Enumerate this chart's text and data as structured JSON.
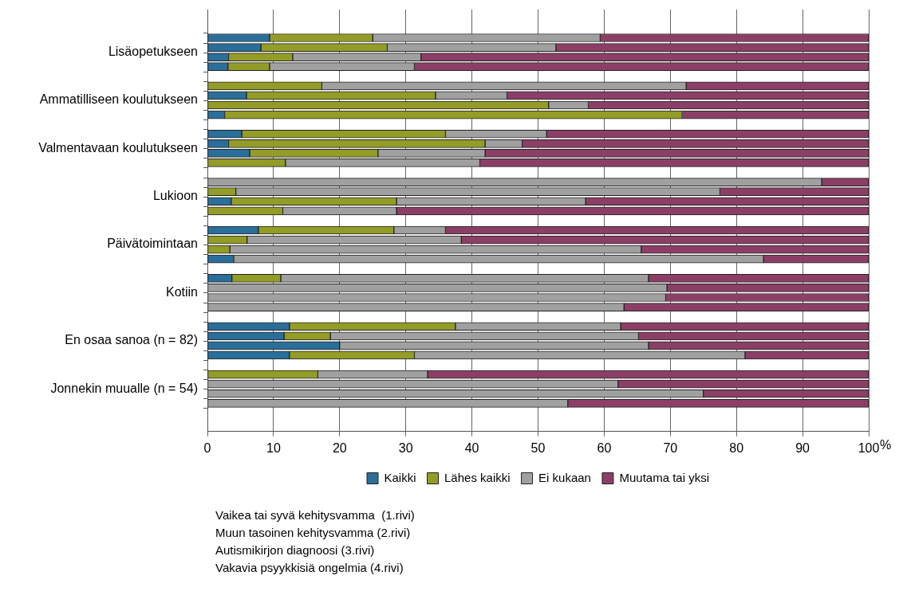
{
  "chart_data": {
    "type": "bar",
    "orientation": "horizontal",
    "stacked": true,
    "xlabel": "%",
    "categories": [
      null,
      "Lisäopetukseen",
      null,
      null,
      null,
      null,
      "Ammatilliseen koulutukseen",
      null,
      null,
      null,
      null,
      "Valmentavaan koulutukseen",
      null,
      null,
      null,
      null,
      "Lukioon",
      null,
      null,
      null,
      null,
      "Päivätoimintaan",
      null,
      null,
      null,
      null,
      "Kotiin",
      null,
      null,
      null,
      null,
      "En osaa sanoa (n = 82)",
      null,
      null,
      null,
      null,
      "Jonnekin muualle (n = 54)",
      null,
      null
    ],
    "series": [
      {
        "name": "Kaikki",
        "color": "#2a6f9a",
        "values": [
          9.4,
          8.1,
          3.2,
          3.1,
          null,
          0,
          5.9,
          0,
          2.6,
          null,
          5.2,
          3.2,
          6.4,
          0,
          null,
          0,
          0,
          3.6,
          0,
          null,
          7.7,
          0,
          0,
          4.0,
          null,
          3.7,
          0,
          0,
          0,
          null,
          12.4,
          11.6,
          20.0,
          12.4,
          null,
          0,
          0,
          0,
          0
        ]
      },
      {
        "name": "Lähes kaikki",
        "color": "#939c26",
        "values": [
          15.6,
          19.1,
          9.7,
          6.3,
          null,
          17.3,
          28.6,
          51.6,
          69.2,
          null,
          30.8,
          38.8,
          19.4,
          11.8,
          null,
          0,
          4.3,
          25.0,
          11.4,
          null,
          20.5,
          6.0,
          3.4,
          0,
          null,
          7.4,
          0,
          0,
          0,
          null,
          25.1,
          7.0,
          0,
          18.9,
          null,
          16.7,
          0,
          0,
          0
        ]
      },
      {
        "name": "Ei kukaan",
        "color": "#a0a0a0",
        "values": [
          34.4,
          25.5,
          19.4,
          21.9,
          null,
          55.1,
          10.8,
          6.0,
          0,
          null,
          15.3,
          5.6,
          16.2,
          29.4,
          null,
          92.9,
          73.2,
          28.6,
          17.2,
          null,
          7.8,
          32.4,
          62.2,
          80.1,
          null,
          55.6,
          69.5,
          69.3,
          63.0,
          null,
          25.0,
          46.6,
          46.7,
          50.0,
          null,
          16.6,
          62.1,
          75.0,
          54.5
        ]
      },
      {
        "name": "Muutama tai yksi",
        "color": "#8c3f66",
        "values": [
          40.6,
          47.3,
          67.7,
          68.7,
          null,
          27.6,
          54.7,
          42.4,
          28.2,
          null,
          48.7,
          52.4,
          58.0,
          58.8,
          null,
          7.1,
          22.5,
          42.8,
          71.4,
          null,
          64.0,
          61.6,
          34.4,
          15.9,
          null,
          33.3,
          30.5,
          30.7,
          37.0,
          null,
          37.5,
          34.8,
          33.3,
          18.7,
          null,
          66.7,
          37.9,
          25.0,
          45.5
        ]
      }
    ],
    "xlim": [
      0,
      100
    ],
    "xticks": [
      0,
      10,
      20,
      30,
      40,
      50,
      60,
      70,
      80,
      90,
      100
    ],
    "grid": "x",
    "legend": "bottom",
    "annotations": [
      "Vaikea tai syvä kehitysvamma  (1.rivi)",
      "Muun tasoinen kehitysvamma (2.rivi)",
      "Autismikirjon diagnoosi (3.rivi)",
      "Vakavia psyykkisiä ongelmia (4.rivi)"
    ]
  }
}
